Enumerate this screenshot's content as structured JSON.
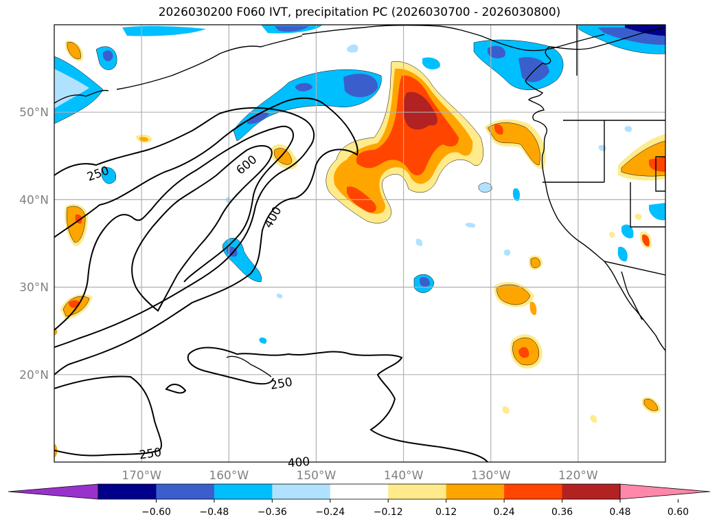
{
  "chart_data": {
    "type": "heatmap",
    "title": "2026030200 F060 IVT, precipitation PC (2026030700 - 2026030800)",
    "xlabel": "",
    "ylabel": "",
    "lon_range": [
      -180,
      -110
    ],
    "lat_range": [
      10,
      60
    ],
    "lat_ticks": [
      "50°N",
      "40°N",
      "30°N",
      "20°N"
    ],
    "lat_tick_values": [
      50,
      40,
      30,
      20
    ],
    "lon_ticks": [
      "170°W",
      "160°W",
      "150°W",
      "140°W",
      "130°W",
      "120°W"
    ],
    "lon_tick_values": [
      -170,
      -160,
      -150,
      -140,
      -130,
      -120
    ],
    "grid": true,
    "colorbar": {
      "orientation": "horizontal",
      "extend": "both",
      "tick_labels": [
        "−0.60",
        "−0.48",
        "−0.36",
        "−0.24",
        "−0.12",
        "0.12",
        "0.24",
        "0.36",
        "0.48",
        "0.60"
      ],
      "levels": [
        -0.6,
        -0.48,
        -0.36,
        -0.24,
        -0.12,
        0.12,
        0.24,
        0.36,
        0.48,
        0.6
      ],
      "colors": [
        "#9932cc",
        "#00008b",
        "#3a5fcd",
        "#00bfff",
        "#b0e2ff",
        "#ffffff",
        "#ffeb8b",
        "#ffa500",
        "#ff4500",
        "#b22222",
        "#ff88aa"
      ]
    },
    "contour_labels": [
      {
        "text": "250",
        "lon": -175,
        "lat": 43
      },
      {
        "text": "600",
        "lon": -158,
        "lat": 44
      },
      {
        "text": "400",
        "lon": -155,
        "lat": 38
      },
      {
        "text": "250",
        "lon": -154,
        "lat": 19
      },
      {
        "text": "250",
        "lon": -169,
        "lat": 11
      },
      {
        "text": "400",
        "lon": -152,
        "lat": 10
      }
    ],
    "contour_levels": [
      250,
      400,
      600
    ],
    "contour_color": "#000000"
  }
}
